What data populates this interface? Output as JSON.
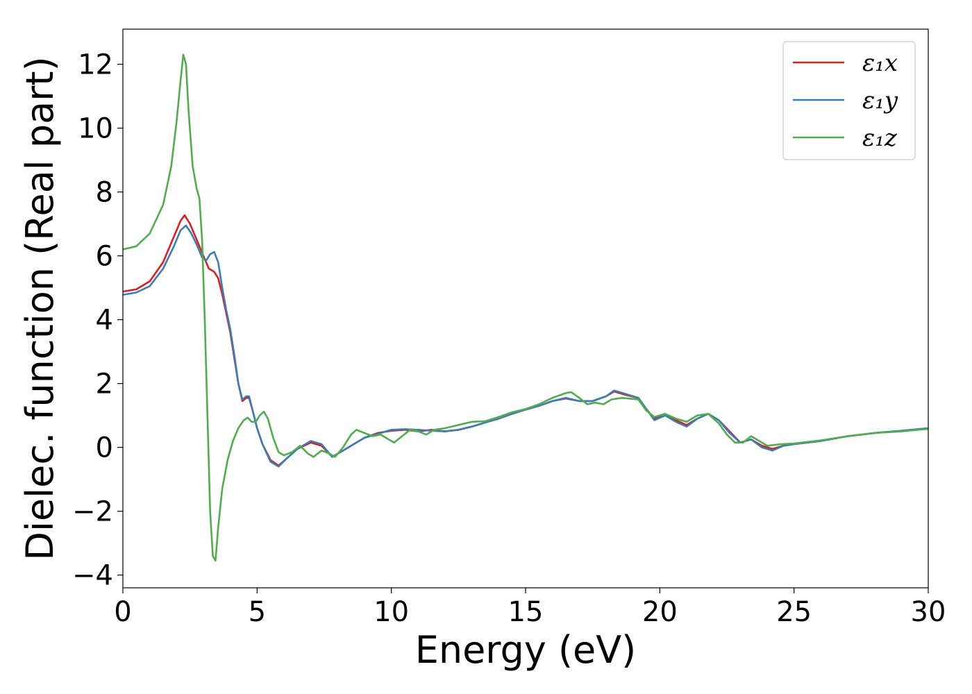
{
  "chart_data": {
    "type": "line",
    "xlabel": "Energy (eV)",
    "ylabel": "Dielec. function (Real part)",
    "xlim": [
      0,
      30
    ],
    "ylim": [
      -4.4,
      13.1
    ],
    "xticks": [
      0,
      5,
      10,
      15,
      20,
      25,
      30
    ],
    "xtick_labels": [
      "0",
      "5",
      "10",
      "15",
      "20",
      "25",
      "30"
    ],
    "yticks": [
      -4,
      -2,
      0,
      2,
      4,
      6,
      8,
      10,
      12
    ],
    "ytick_labels": [
      "−4",
      "−2",
      "0",
      "2",
      "4",
      "6",
      "8",
      "10",
      "12"
    ],
    "grid": false,
    "legend_position": "top-right",
    "series": [
      {
        "name": "ε₁x",
        "color": "#e41a1c",
        "points": [
          [
            0,
            4.88
          ],
          [
            0.5,
            4.95
          ],
          [
            1.0,
            5.2
          ],
          [
            1.5,
            5.8
          ],
          [
            1.9,
            6.6
          ],
          [
            2.15,
            7.1
          ],
          [
            2.3,
            7.27
          ],
          [
            2.5,
            7.0
          ],
          [
            2.7,
            6.6
          ],
          [
            2.9,
            6.2
          ],
          [
            3.05,
            5.9
          ],
          [
            3.2,
            5.6
          ],
          [
            3.4,
            5.5
          ],
          [
            3.55,
            5.3
          ],
          [
            3.7,
            4.8
          ],
          [
            3.85,
            4.2
          ],
          [
            4.0,
            3.6
          ],
          [
            4.15,
            2.8
          ],
          [
            4.3,
            2.0
          ],
          [
            4.45,
            1.45
          ],
          [
            4.6,
            1.55
          ],
          [
            4.7,
            1.55
          ],
          [
            4.85,
            1.1
          ],
          [
            5.0,
            0.6
          ],
          [
            5.2,
            0.1
          ],
          [
            5.5,
            -0.4
          ],
          [
            5.8,
            -0.57
          ],
          [
            6.1,
            -0.35
          ],
          [
            6.5,
            -0.05
          ],
          [
            7.0,
            0.15
          ],
          [
            7.4,
            0.05
          ],
          [
            7.8,
            -0.3
          ],
          [
            8.2,
            -0.1
          ],
          [
            8.6,
            0.1
          ],
          [
            9.0,
            0.3
          ],
          [
            9.5,
            0.45
          ],
          [
            10.0,
            0.52
          ],
          [
            10.5,
            0.55
          ],
          [
            11.0,
            0.5
          ],
          [
            11.5,
            0.55
          ],
          [
            12.0,
            0.5
          ],
          [
            12.5,
            0.55
          ],
          [
            13.0,
            0.65
          ],
          [
            13.5,
            0.78
          ],
          [
            14.0,
            0.9
          ],
          [
            14.5,
            1.05
          ],
          [
            15.0,
            1.18
          ],
          [
            15.5,
            1.3
          ],
          [
            16.0,
            1.45
          ],
          [
            16.5,
            1.53
          ],
          [
            17.0,
            1.45
          ],
          [
            17.5,
            1.45
          ],
          [
            18.0,
            1.6
          ],
          [
            18.3,
            1.75
          ],
          [
            18.7,
            1.65
          ],
          [
            19.2,
            1.55
          ],
          [
            19.5,
            1.2
          ],
          [
            19.8,
            0.9
          ],
          [
            20.2,
            1.0
          ],
          [
            20.6,
            0.85
          ],
          [
            21.0,
            0.7
          ],
          [
            21.4,
            0.9
          ],
          [
            21.8,
            1.05
          ],
          [
            22.2,
            0.85
          ],
          [
            22.6,
            0.5
          ],
          [
            23.0,
            0.15
          ],
          [
            23.4,
            0.25
          ],
          [
            23.8,
            0.05
          ],
          [
            24.2,
            -0.05
          ],
          [
            24.6,
            0.05
          ],
          [
            25.0,
            0.1
          ],
          [
            26.0,
            0.2
          ],
          [
            27.0,
            0.35
          ],
          [
            28.0,
            0.45
          ],
          [
            29.0,
            0.52
          ],
          [
            30.0,
            0.6
          ]
        ]
      },
      {
        "name": "ε₁y",
        "color": "#377eb8",
        "points": [
          [
            0,
            4.78
          ],
          [
            0.5,
            4.85
          ],
          [
            1.0,
            5.05
          ],
          [
            1.5,
            5.6
          ],
          [
            1.9,
            6.3
          ],
          [
            2.15,
            6.8
          ],
          [
            2.35,
            6.95
          ],
          [
            2.55,
            6.7
          ],
          [
            2.75,
            6.35
          ],
          [
            2.95,
            5.95
          ],
          [
            3.1,
            5.85
          ],
          [
            3.25,
            6.05
          ],
          [
            3.4,
            6.12
          ],
          [
            3.55,
            5.8
          ],
          [
            3.7,
            5.0
          ],
          [
            3.85,
            4.3
          ],
          [
            4.0,
            3.7
          ],
          [
            4.15,
            2.9
          ],
          [
            4.3,
            2.0
          ],
          [
            4.45,
            1.5
          ],
          [
            4.6,
            1.6
          ],
          [
            4.7,
            1.6
          ],
          [
            4.85,
            1.1
          ],
          [
            5.0,
            0.6
          ],
          [
            5.2,
            0.1
          ],
          [
            5.5,
            -0.45
          ],
          [
            5.8,
            -0.6
          ],
          [
            6.1,
            -0.35
          ],
          [
            6.5,
            -0.05
          ],
          [
            7.0,
            0.2
          ],
          [
            7.4,
            0.1
          ],
          [
            7.8,
            -0.3
          ],
          [
            8.2,
            -0.1
          ],
          [
            8.6,
            0.1
          ],
          [
            9.0,
            0.3
          ],
          [
            9.5,
            0.42
          ],
          [
            10.0,
            0.55
          ],
          [
            10.5,
            0.57
          ],
          [
            11.0,
            0.55
          ],
          [
            11.5,
            0.52
          ],
          [
            12.0,
            0.5
          ],
          [
            12.5,
            0.55
          ],
          [
            13.0,
            0.65
          ],
          [
            13.5,
            0.78
          ],
          [
            14.0,
            0.9
          ],
          [
            14.5,
            1.05
          ],
          [
            15.0,
            1.18
          ],
          [
            15.5,
            1.3
          ],
          [
            16.0,
            1.45
          ],
          [
            16.5,
            1.55
          ],
          [
            17.0,
            1.45
          ],
          [
            17.5,
            1.45
          ],
          [
            18.0,
            1.6
          ],
          [
            18.3,
            1.78
          ],
          [
            18.7,
            1.68
          ],
          [
            19.2,
            1.55
          ],
          [
            19.5,
            1.2
          ],
          [
            19.8,
            0.85
          ],
          [
            20.2,
            1.0
          ],
          [
            20.6,
            0.8
          ],
          [
            21.0,
            0.65
          ],
          [
            21.4,
            0.9
          ],
          [
            21.8,
            1.05
          ],
          [
            22.2,
            0.85
          ],
          [
            22.6,
            0.45
          ],
          [
            23.0,
            0.15
          ],
          [
            23.4,
            0.25
          ],
          [
            23.8,
            0.0
          ],
          [
            24.2,
            -0.1
          ],
          [
            24.6,
            0.05
          ],
          [
            25.0,
            0.1
          ],
          [
            26.0,
            0.2
          ],
          [
            27.0,
            0.35
          ],
          [
            28.0,
            0.45
          ],
          [
            29.0,
            0.52
          ],
          [
            30.0,
            0.6
          ]
        ]
      },
      {
        "name": "ε₁z",
        "color": "#4daf4a",
        "points": [
          [
            0,
            6.2
          ],
          [
            0.5,
            6.3
          ],
          [
            1.0,
            6.7
          ],
          [
            1.5,
            7.6
          ],
          [
            1.8,
            8.8
          ],
          [
            2.0,
            10.2
          ],
          [
            2.15,
            11.5
          ],
          [
            2.25,
            12.3
          ],
          [
            2.35,
            12.0
          ],
          [
            2.45,
            10.5
          ],
          [
            2.6,
            8.8
          ],
          [
            2.75,
            8.1
          ],
          [
            2.85,
            7.8
          ],
          [
            2.95,
            6.5
          ],
          [
            3.05,
            4.0
          ],
          [
            3.15,
            1.0
          ],
          [
            3.25,
            -2.0
          ],
          [
            3.35,
            -3.4
          ],
          [
            3.45,
            -3.55
          ],
          [
            3.55,
            -2.5
          ],
          [
            3.7,
            -1.3
          ],
          [
            3.9,
            -0.4
          ],
          [
            4.1,
            0.2
          ],
          [
            4.3,
            0.6
          ],
          [
            4.5,
            0.85
          ],
          [
            4.65,
            0.93
          ],
          [
            4.8,
            0.8
          ],
          [
            4.95,
            0.8
          ],
          [
            5.1,
            1.0
          ],
          [
            5.25,
            1.12
          ],
          [
            5.4,
            0.9
          ],
          [
            5.6,
            0.3
          ],
          [
            5.8,
            -0.15
          ],
          [
            6.0,
            -0.25
          ],
          [
            6.3,
            -0.15
          ],
          [
            6.6,
            0.05
          ],
          [
            6.9,
            -0.2
          ],
          [
            7.1,
            -0.3
          ],
          [
            7.4,
            -0.1
          ],
          [
            7.7,
            -0.2
          ],
          [
            7.9,
            -0.3
          ],
          [
            8.2,
            0.0
          ],
          [
            8.5,
            0.4
          ],
          [
            8.7,
            0.55
          ],
          [
            9.0,
            0.45
          ],
          [
            9.3,
            0.35
          ],
          [
            9.6,
            0.4
          ],
          [
            9.9,
            0.25
          ],
          [
            10.1,
            0.15
          ],
          [
            10.4,
            0.35
          ],
          [
            10.7,
            0.55
          ],
          [
            11.0,
            0.5
          ],
          [
            11.3,
            0.4
          ],
          [
            11.6,
            0.55
          ],
          [
            12.0,
            0.6
          ],
          [
            12.5,
            0.7
          ],
          [
            13.0,
            0.8
          ],
          [
            13.5,
            0.82
          ],
          [
            14.0,
            0.95
          ],
          [
            14.5,
            1.1
          ],
          [
            15.0,
            1.2
          ],
          [
            15.5,
            1.35
          ],
          [
            16.0,
            1.55
          ],
          [
            16.5,
            1.7
          ],
          [
            16.7,
            1.73
          ],
          [
            17.0,
            1.55
          ],
          [
            17.3,
            1.35
          ],
          [
            17.6,
            1.4
          ],
          [
            17.9,
            1.35
          ],
          [
            18.2,
            1.5
          ],
          [
            18.6,
            1.55
          ],
          [
            19.2,
            1.5
          ],
          [
            19.5,
            1.15
          ],
          [
            19.8,
            0.95
          ],
          [
            20.2,
            1.05
          ],
          [
            20.6,
            0.9
          ],
          [
            21.0,
            0.8
          ],
          [
            21.4,
            1.0
          ],
          [
            21.8,
            1.05
          ],
          [
            22.2,
            0.75
          ],
          [
            22.5,
            0.4
          ],
          [
            22.8,
            0.15
          ],
          [
            23.1,
            0.15
          ],
          [
            23.4,
            0.35
          ],
          [
            23.7,
            0.2
          ],
          [
            24.0,
            0.05
          ],
          [
            24.5,
            0.1
          ],
          [
            25.0,
            0.12
          ],
          [
            26.0,
            0.22
          ],
          [
            27.0,
            0.35
          ],
          [
            28.0,
            0.45
          ],
          [
            29.0,
            0.5
          ],
          [
            30.0,
            0.58
          ]
        ]
      }
    ]
  }
}
